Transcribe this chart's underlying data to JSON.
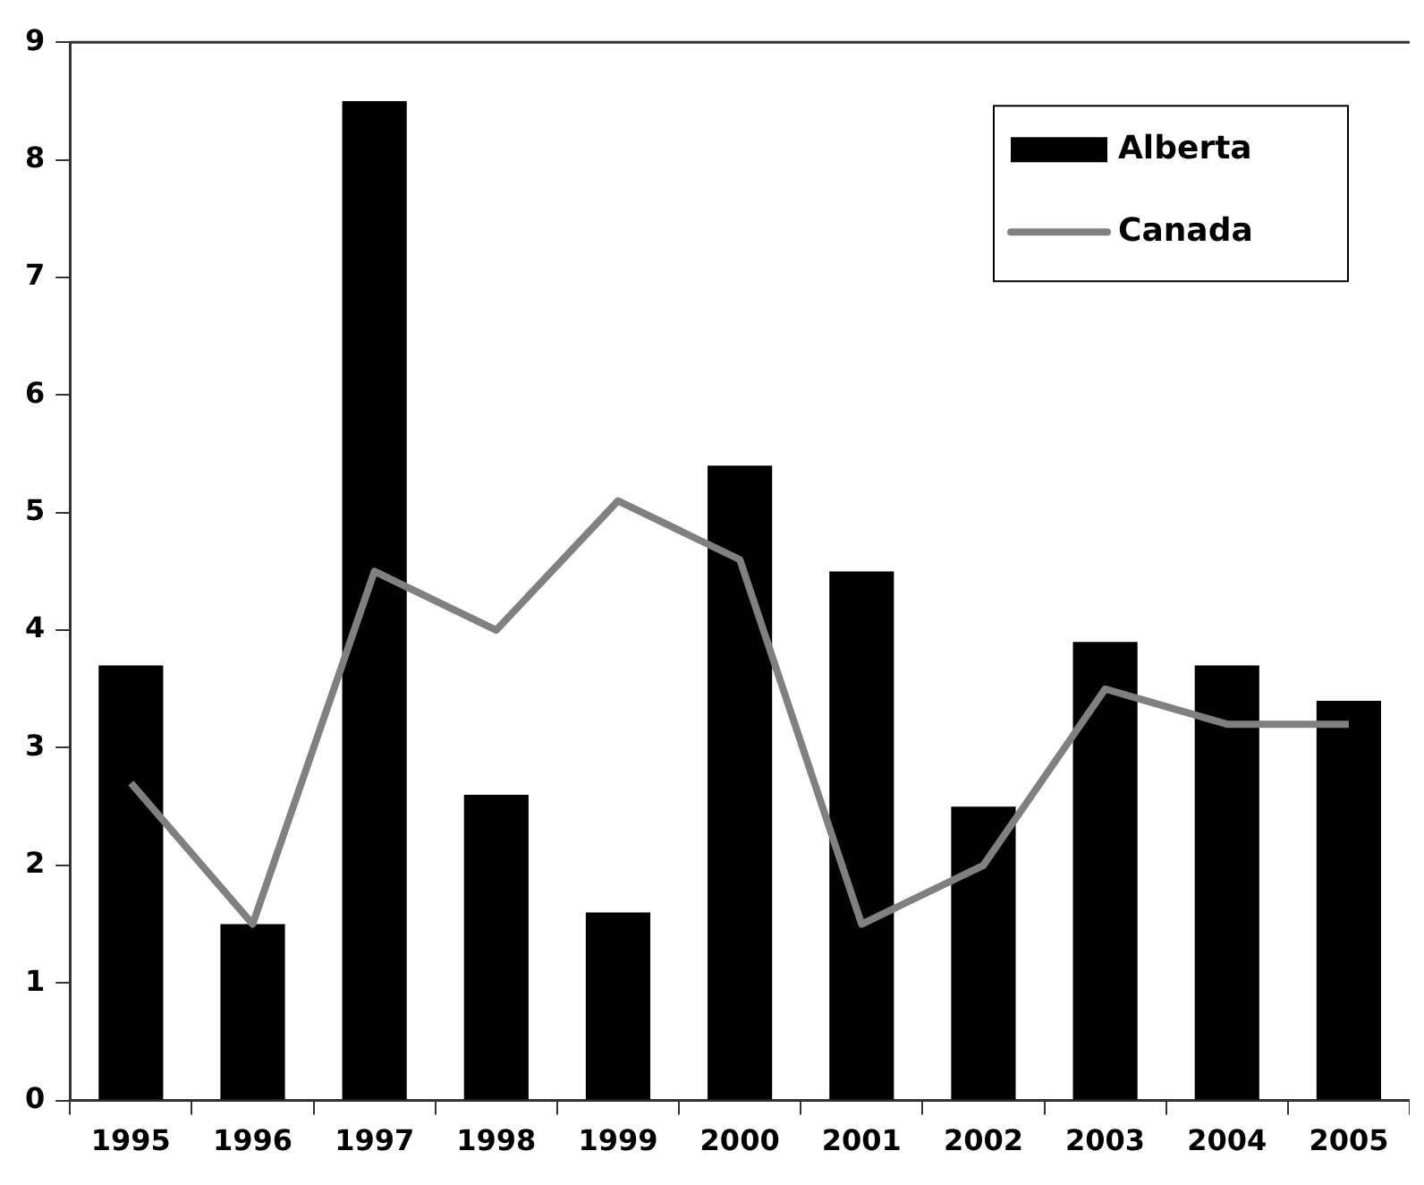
{
  "chart_data": {
    "type": "bar",
    "categories": [
      "1995",
      "1996",
      "1997",
      "1998",
      "1999",
      "2000",
      "2001",
      "2002",
      "2003",
      "2004",
      "2005"
    ],
    "series": [
      {
        "name": "Alberta",
        "color": "#000000",
        "values": [
          3.7,
          1.5,
          8.5,
          2.6,
          1.6,
          5.4,
          4.5,
          2.5,
          3.9,
          3.7,
          3.4
        ]
      },
      {
        "name": "Canada",
        "type": "line",
        "color": "#808080",
        "values": [
          2.7,
          1.5,
          4.5,
          4.0,
          5.1,
          4.6,
          1.5,
          2.0,
          3.5,
          3.2,
          3.2
        ]
      }
    ],
    "ylim": [
      0,
      9
    ],
    "yticks": [
      0,
      1,
      2,
      3,
      4,
      5,
      6,
      7,
      8,
      9
    ],
    "grid": false,
    "legend": "top right",
    "marker": "none",
    "line_style": "solid"
  }
}
